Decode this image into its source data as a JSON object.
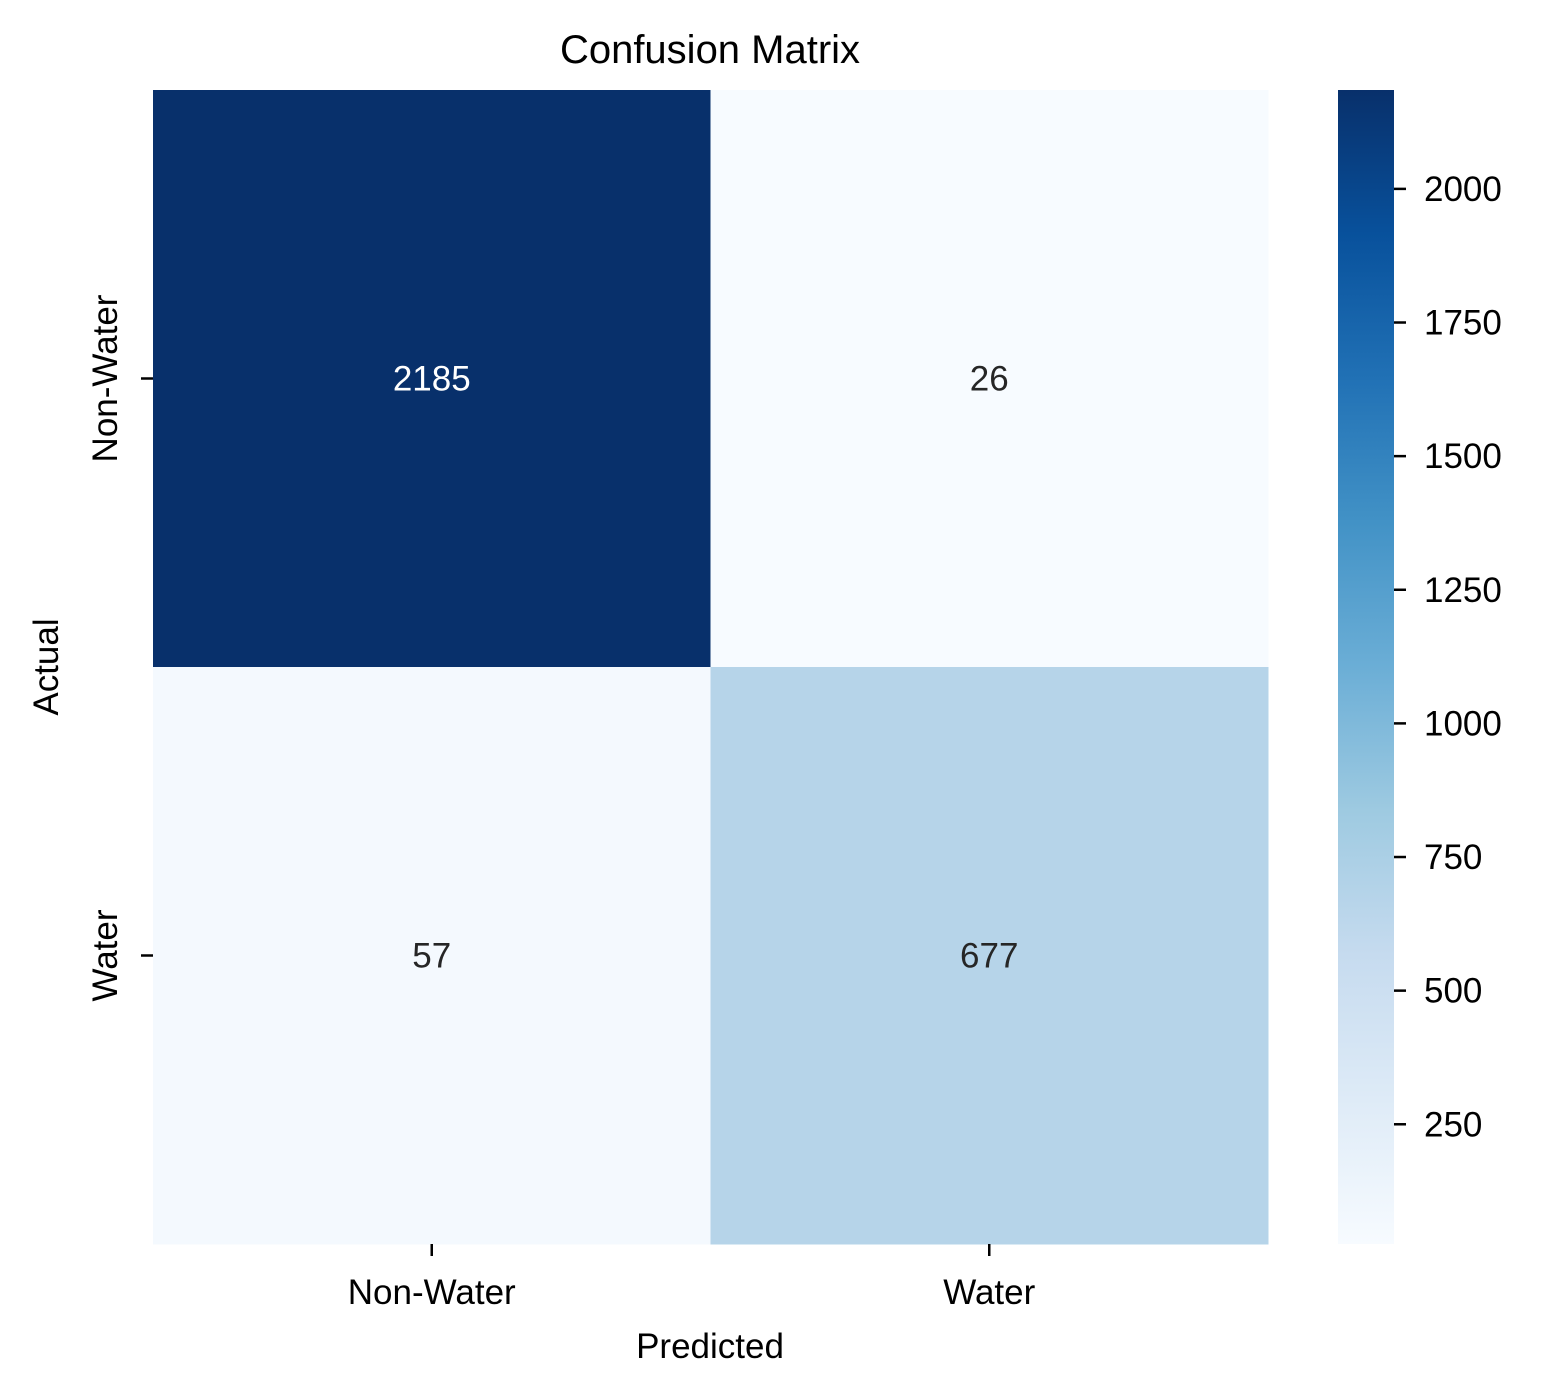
{
  "chart_data": {
    "type": "heatmap",
    "title": "Confusion Matrix",
    "xlabel": "Predicted",
    "ylabel": "Actual",
    "x_categories": [
      "Non-Water",
      "Water"
    ],
    "y_categories": [
      "Non-Water",
      "Water"
    ],
    "values": [
      [
        2185,
        26
      ],
      [
        57,
        677
      ]
    ],
    "colormap": "Blues",
    "color_range": [
      26,
      2185
    ],
    "colorbar": {
      "ticks": [
        250,
        500,
        750,
        1000,
        1250,
        1500,
        1750,
        2000
      ],
      "tick_labels": [
        "250",
        "500",
        "750",
        "1000",
        "1250",
        "1500",
        "1750",
        "2000"
      ]
    }
  },
  "colors": {
    "dark_text": "#262626",
    "light_text": "#ffffff",
    "blues_stops": [
      "#f7fbff",
      "#deebf7",
      "#c6dbef",
      "#9ecae1",
      "#6baed6",
      "#4292c6",
      "#2171b5",
      "#08519c",
      "#08306b"
    ]
  }
}
